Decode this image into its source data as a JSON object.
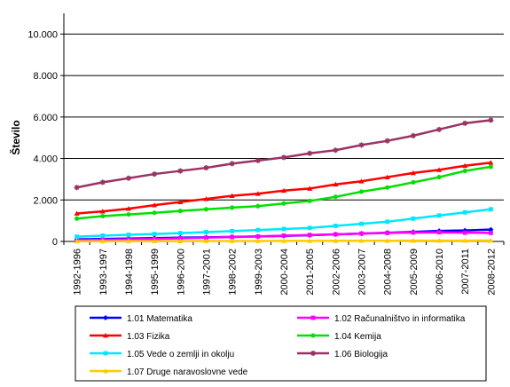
{
  "chart_data": {
    "type": "line",
    "title": "",
    "xlabel": "",
    "ylabel": "Število",
    "ylim": [
      0,
      11000
    ],
    "yticks": [
      0,
      2000,
      4000,
      6000,
      8000,
      10000
    ],
    "ytick_labels": [
      "0",
      "2.000",
      "4.000",
      "6.000",
      "8.000",
      "10.000"
    ],
    "grid": "horizontal",
    "legend_position": "bottom",
    "categories": [
      "1992-1996",
      "1993-1997",
      "1994-1998",
      "1995-1999",
      "1996-2000",
      "1997-2001",
      "1998-2002",
      "1999-2003",
      "2000-2004",
      "2001-2005",
      "2002-2006",
      "2003-2007",
      "2004-2008",
      "2005-2009",
      "2006-2010",
      "2007-2011",
      "2008-2012"
    ],
    "series": [
      {
        "name": "1.01 Matematika",
        "color": "#0000ff",
        "marker": "diamond",
        "values": [
          100,
          120,
          140,
          160,
          180,
          200,
          220,
          240,
          270,
          300,
          340,
          380,
          420,
          460,
          510,
          530,
          570
        ]
      },
      {
        "name": "1.02 Računalništvo in informatika",
        "color": "#ff00ff",
        "marker": "square",
        "values": [
          60,
          80,
          100,
          120,
          150,
          180,
          210,
          240,
          280,
          310,
          340,
          380,
          410,
          430,
          440,
          420,
          410
        ]
      },
      {
        "name": "1.03 Fizika",
        "color": "#ff0000",
        "marker": "triangle",
        "values": [
          1350,
          1450,
          1580,
          1750,
          1900,
          2050,
          2200,
          2300,
          2450,
          2550,
          2750,
          2900,
          3100,
          3300,
          3450,
          3650,
          3800
        ]
      },
      {
        "name": "1.04 Kemija",
        "color": "#00e000",
        "marker": "circle",
        "values": [
          1100,
          1220,
          1300,
          1380,
          1470,
          1550,
          1630,
          1700,
          1830,
          1950,
          2150,
          2400,
          2600,
          2850,
          3100,
          3400,
          3600
        ]
      },
      {
        "name": "1.05 Vede o zemlji in okolju",
        "color": "#00e6ff",
        "marker": "square",
        "values": [
          230,
          280,
          320,
          360,
          400,
          450,
          500,
          550,
          600,
          650,
          750,
          850,
          950,
          1100,
          1250,
          1400,
          1550
        ]
      },
      {
        "name": "1.06 Biologija",
        "color": "#993366",
        "marker": "star",
        "values": [
          2600,
          2850,
          3050,
          3250,
          3400,
          3550,
          3750,
          3900,
          4050,
          4250,
          4400,
          4650,
          4850,
          5100,
          5400,
          5700,
          5850
        ]
      },
      {
        "name": "1.07 Druge naravoslovne vede",
        "color": "#ffcc00",
        "marker": "triangle",
        "values": [
          10,
          12,
          14,
          16,
          18,
          20,
          22,
          24,
          26,
          28,
          30,
          32,
          34,
          36,
          38,
          40,
          42
        ]
      }
    ]
  }
}
